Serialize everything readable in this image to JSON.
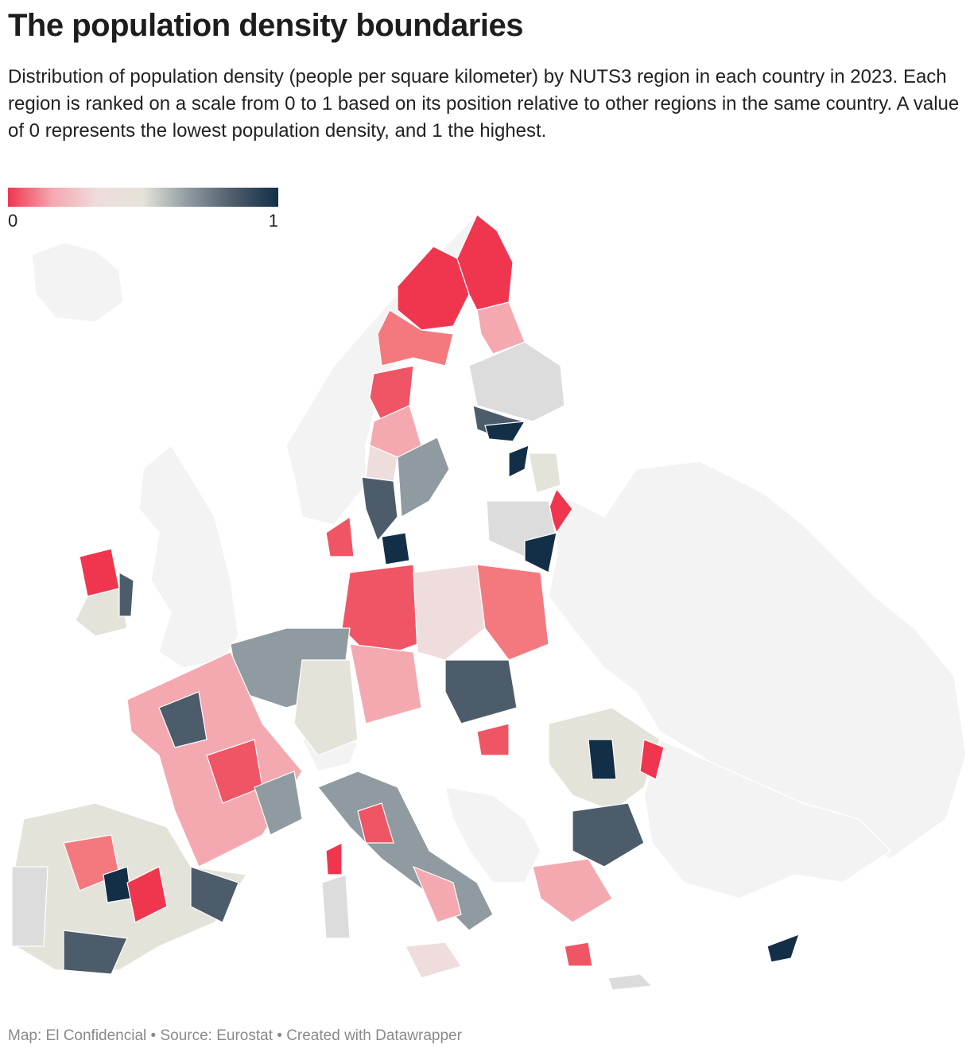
{
  "header": {
    "title": "The population density boundaries",
    "subtitle": "Distribution of population density (people per square kilometer) by NUTS3 region in each country in 2023. Each region is ranked on a scale from 0 to 1 based on its position relative to other regions in the same country. A value of 0 represents the lowest population density, and 1 the highest."
  },
  "legend": {
    "range": [
      0,
      1
    ],
    "ticks": [
      0,
      1
    ],
    "colors": [
      "#f0364f",
      "#f4a9b0",
      "#efdcdc",
      "#e4e3d9",
      "#8f9aa1",
      "#4d5c6a",
      "#132f47"
    ]
  },
  "footer": "Map: El Confidencial • Source: Eurostat • Created with Datawrapper"
}
